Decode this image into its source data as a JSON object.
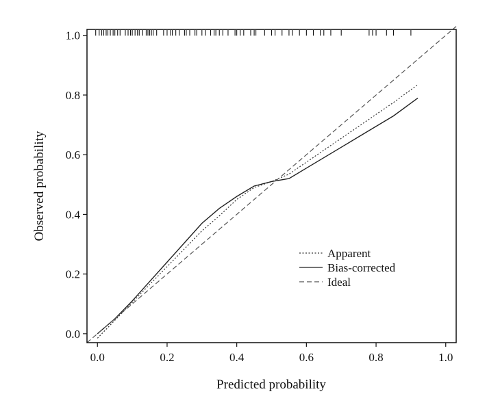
{
  "chart_data": {
    "type": "line",
    "title": "",
    "xlabel": "Predicted probability",
    "ylabel": "Observed probability",
    "xlim": [
      -0.03,
      1.03
    ],
    "ylim": [
      -0.03,
      1.02
    ],
    "xticks": [
      0.0,
      0.2,
      0.4,
      0.6,
      0.8,
      1.0
    ],
    "xtick_labels": [
      "0.0",
      "0.2",
      "0.4",
      "0.6",
      "0.8",
      "1.0"
    ],
    "yticks": [
      0.0,
      0.2,
      0.4,
      0.6,
      0.8,
      1.0
    ],
    "ytick_labels": [
      "0.0",
      "0.2",
      "0.4",
      "0.6",
      "0.8",
      "1.0"
    ],
    "grid": false,
    "legend_position": "bottom-right",
    "series": [
      {
        "name": "Apparent",
        "style": "dotted",
        "color": "#333333",
        "x": [
          0.0,
          0.05,
          0.1,
          0.15,
          0.2,
          0.25,
          0.3,
          0.35,
          0.4,
          0.45,
          0.5,
          0.55,
          0.6,
          0.65,
          0.7,
          0.75,
          0.8,
          0.85,
          0.92
        ],
        "y": [
          -0.015,
          0.045,
          0.105,
          0.165,
          0.225,
          0.285,
          0.345,
          0.395,
          0.45,
          0.49,
          0.51,
          0.535,
          0.575,
          0.615,
          0.655,
          0.695,
          0.735,
          0.775,
          0.835
        ]
      },
      {
        "name": "Bias-corrected",
        "style": "solid",
        "color": "#222222",
        "x": [
          0.0,
          0.05,
          0.1,
          0.15,
          0.2,
          0.25,
          0.3,
          0.35,
          0.4,
          0.45,
          0.5,
          0.55,
          0.6,
          0.65,
          0.7,
          0.75,
          0.8,
          0.85,
          0.92
        ],
        "y": [
          0.0,
          0.05,
          0.11,
          0.175,
          0.24,
          0.305,
          0.37,
          0.42,
          0.46,
          0.495,
          0.51,
          0.52,
          0.555,
          0.59,
          0.625,
          0.66,
          0.695,
          0.73,
          0.79
        ]
      },
      {
        "name": "Ideal",
        "style": "dashed",
        "color": "#555555",
        "x": [
          -0.03,
          1.03
        ],
        "y": [
          -0.03,
          1.03
        ]
      }
    ],
    "rug_ticks": [
      -0.005,
      0.005,
      0.012,
      0.018,
      0.025,
      0.03,
      0.037,
      0.045,
      0.05,
      0.058,
      0.065,
      0.08,
      0.088,
      0.095,
      0.1,
      0.108,
      0.115,
      0.12,
      0.13,
      0.14,
      0.145,
      0.15,
      0.155,
      0.16,
      0.17,
      0.19,
      0.2,
      0.21,
      0.215,
      0.225,
      0.235,
      0.25,
      0.255,
      0.265,
      0.28,
      0.285,
      0.3,
      0.31,
      0.325,
      0.335,
      0.34,
      0.35,
      0.36,
      0.375,
      0.395,
      0.4,
      0.41,
      0.42,
      0.44,
      0.45,
      0.455,
      0.48,
      0.5,
      0.51,
      0.53,
      0.55,
      0.56,
      0.58,
      0.6,
      0.62,
      0.64,
      0.65,
      0.67,
      0.7,
      0.78,
      0.79,
      0.8,
      0.83,
      0.85,
      0.9
    ]
  }
}
